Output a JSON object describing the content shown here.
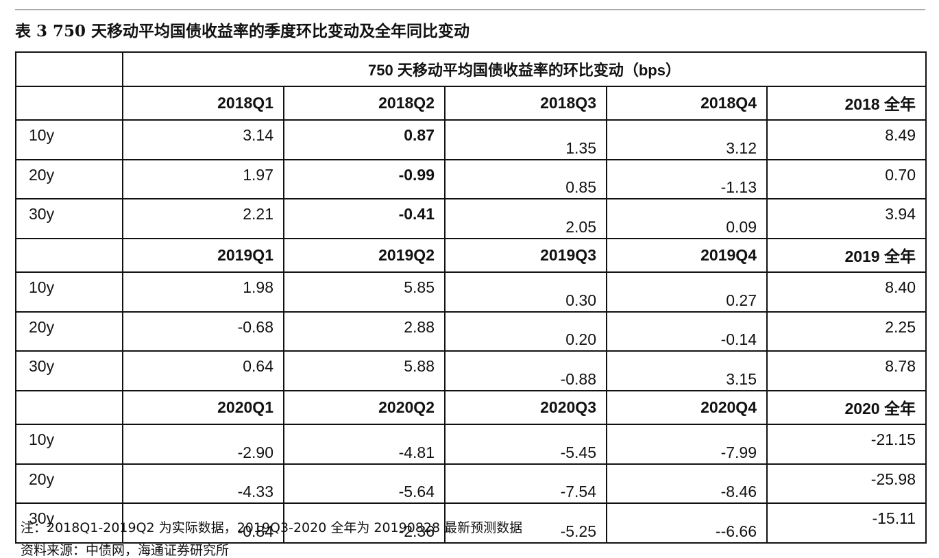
{
  "title": "表 3 750 天移动平均国债收益率的季度环比变动及全年同比变动",
  "table": {
    "header": "750 天移动平均国债收益率的环比变动（bps）",
    "sections": [
      {
        "columns": [
          "2018Q1",
          "2018Q2",
          "2018Q3",
          "2018Q4",
          "2018 全年"
        ],
        "rows": [
          [
            "10y",
            "3.14",
            "0.87",
            "1.35",
            "3.12",
            "8.49"
          ],
          [
            "20y",
            "1.97",
            "-0.99",
            "0.85",
            "-1.13",
            "0.70"
          ],
          [
            "30y",
            "2.21",
            "-0.41",
            "2.05",
            "0.09",
            "3.94"
          ]
        ]
      },
      {
        "columns": [
          "2019Q1",
          "2019Q2",
          "2019Q3",
          "2019Q4",
          "2019 全年"
        ],
        "rows": [
          [
            "10y",
            "1.98",
            "5.85",
            "0.30",
            "0.27",
            "8.40"
          ],
          [
            "20y",
            "-0.68",
            "2.88",
            "0.20",
            "-0.14",
            "2.25"
          ],
          [
            "30y",
            "0.64",
            "5.88",
            "-0.88",
            "3.15",
            "8.78"
          ]
        ]
      },
      {
        "columns": [
          "2020Q1",
          "2020Q2",
          "2020Q3",
          "2020Q4",
          "2020 全年"
        ],
        "rows": [
          [
            "10y",
            "-2.90",
            "-4.81",
            "-5.45",
            "-7.99",
            "-21.15"
          ],
          [
            "20y",
            "-4.33",
            "-5.64",
            "-7.54",
            "-8.46",
            "-25.98"
          ],
          [
            "30y",
            "-0.84",
            "-2.36",
            "-5.25",
            "--6.66",
            "-15.11"
          ]
        ]
      }
    ]
  },
  "notes": [
    "注：2018Q1-2019Q2 为实际数据，2019Q3-2020 全年为 20190828 最新预测数据",
    "资料来源：中债网，海通证券研究所"
  ]
}
